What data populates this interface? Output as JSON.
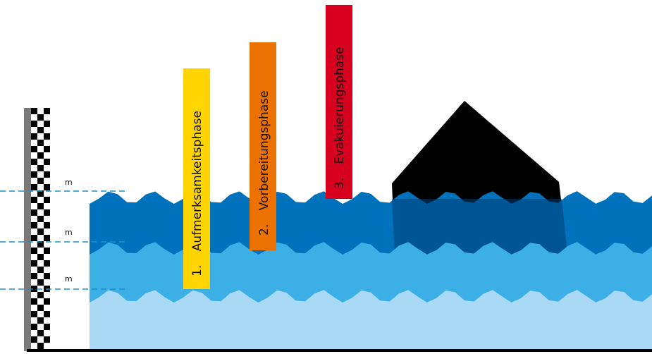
{
  "gauge": {
    "marks": [
      {
        "label": "m"
      },
      {
        "label": "m"
      },
      {
        "label": "m"
      }
    ]
  },
  "phases": [
    {
      "number": "1.",
      "name": "Aufmerksamkeitsphase",
      "color": "#FFD400"
    },
    {
      "number": "2.",
      "name": "Vorbereitungsphase",
      "color": "#EB7200"
    },
    {
      "number": "3.",
      "name": "Evakuierungsphase",
      "color": "#D7001E"
    }
  ],
  "colors": {
    "water_deep": "#0072BC",
    "water_mid": "#3CB0E6",
    "water_light": "#A9D9F4",
    "house": "#000000",
    "dash_line": "#1E8FC8"
  }
}
